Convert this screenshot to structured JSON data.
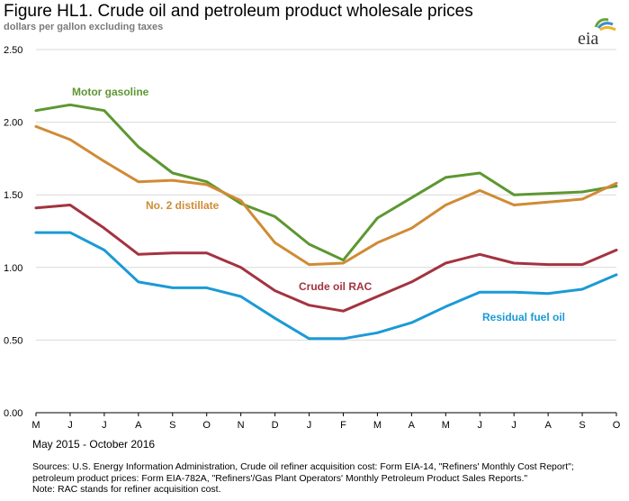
{
  "header": {
    "title": "Figure HL1. Crude oil and petroleum product wholesale prices",
    "subtitle": "dollars per gallon excluding taxes",
    "logo_text": "eia"
  },
  "footer": {
    "date_range": "May 2015 - October 2016",
    "sources_line1": "Sources:  U.S. Energy Information Administration, Crude oil refiner acquisition cost:  Form EIA-14, \"Refiners' Monthly Cost Report\";",
    "sources_line2": "petroleum product prices:  Form EIA-782A, \"Refiners'/Gas Plant Operators' Monthly Petroleum Product Sales Reports.\"",
    "note": "Note:  RAC stands for refiner acquisition cost."
  },
  "chart_data": {
    "type": "line",
    "categories": [
      "M",
      "J",
      "J",
      "A",
      "S",
      "O",
      "N",
      "D",
      "J",
      "F",
      "M",
      "A",
      "M",
      "J",
      "J",
      "A",
      "S",
      "O"
    ],
    "ylim": [
      0,
      2.5
    ],
    "yticks": [
      "0.00",
      "0.50",
      "1.00",
      "1.50",
      "2.00",
      "2.50"
    ],
    "ytick_values": [
      0,
      0.5,
      1.0,
      1.5,
      2.0,
      2.5
    ],
    "grid": true,
    "series": [
      {
        "name": "Motor gasoline",
        "color": "#5d9732",
        "values": [
          2.08,
          2.12,
          2.08,
          1.83,
          1.65,
          1.59,
          1.44,
          1.35,
          1.16,
          1.05,
          1.34,
          1.48,
          1.62,
          1.65,
          1.5,
          1.51,
          1.52,
          1.56
        ]
      },
      {
        "name": "No. 2 distillate",
        "color": "#d08b35",
        "values": [
          1.97,
          1.88,
          1.73,
          1.59,
          1.6,
          1.57,
          1.46,
          1.17,
          1.02,
          1.03,
          1.17,
          1.27,
          1.43,
          1.53,
          1.43,
          1.45,
          1.47,
          1.58
        ]
      },
      {
        "name": "Crude oil RAC",
        "color": "#a33340",
        "values": [
          1.41,
          1.43,
          1.27,
          1.09,
          1.1,
          1.1,
          1.0,
          0.84,
          0.74,
          0.7,
          0.8,
          0.9,
          1.03,
          1.09,
          1.03,
          1.02,
          1.02,
          1.12
        ]
      },
      {
        "name": "Residual fuel oil",
        "color": "#1b9ad6",
        "values": [
          1.24,
          1.24,
          1.12,
          0.9,
          0.86,
          0.86,
          0.8,
          0.65,
          0.51,
          0.51,
          0.55,
          0.62,
          0.73,
          0.83,
          0.83,
          0.82,
          0.85,
          0.95
        ]
      }
    ]
  }
}
